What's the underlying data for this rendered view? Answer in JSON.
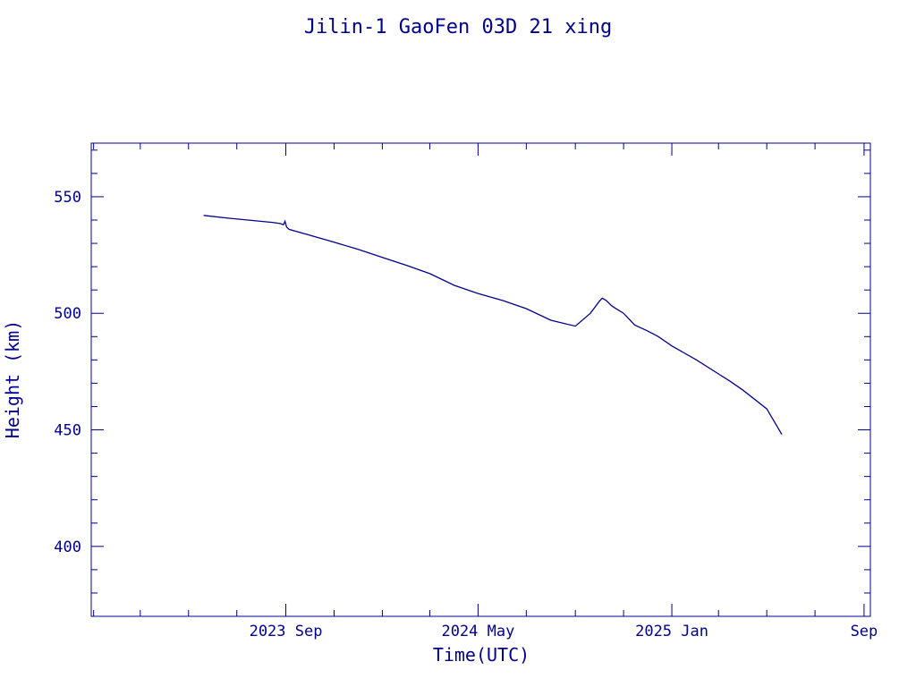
{
  "chart_data": {
    "type": "line",
    "title": "Jilin-1 GaoFen 03D 21 xing",
    "xlabel": "Time(UTC)",
    "ylabel": "Height (km)",
    "x_ticks": [
      {
        "date": "2023-09-01",
        "label": "2023 Sep"
      },
      {
        "date": "2024-05-01",
        "label": "2024 May"
      },
      {
        "date": "2025-01-01",
        "label": "2025 Jan"
      },
      {
        "date": "2025-09-01",
        "label": "Sep"
      }
    ],
    "y_ticks": [
      400,
      450,
      500,
      550
    ],
    "xlim": [
      "2022-12-29",
      "2025-09-09"
    ],
    "ylim": [
      370,
      573
    ],
    "grid": false,
    "color": "#00008b",
    "series": [
      {
        "x": [
          "2023-05-20",
          "2023-06-15",
          "2023-07-15",
          "2023-08-15",
          "2023-08-25",
          "2023-08-29",
          "2023-08-31",
          "2023-09-02",
          "2023-09-05",
          "2023-10-01",
          "2023-11-01",
          "2023-12-01",
          "2024-01-01",
          "2024-02-01",
          "2024-03-01",
          "2024-04-01",
          "2024-05-01",
          "2024-06-01",
          "2024-07-01",
          "2024-08-01",
          "2024-09-01",
          "2024-09-20",
          "2024-10-01",
          "2024-10-05",
          "2024-10-10",
          "2024-10-16",
          "2024-10-20",
          "2024-11-01",
          "2024-11-15",
          "2024-12-01",
          "2024-12-15",
          "2025-01-01",
          "2025-02-01",
          "2025-03-01",
          "2025-03-15",
          "2025-04-01",
          "2025-05-01",
          "2025-05-20"
        ],
        "y": [
          542,
          541,
          540,
          539,
          538.5,
          538,
          539.5,
          537,
          536,
          533.5,
          530.5,
          527.5,
          524,
          520.5,
          517,
          512,
          508.5,
          505.5,
          502,
          497,
          494.5,
          500,
          505,
          506.5,
          505.5,
          503.5,
          502.5,
          500,
          495,
          492.5,
          490,
          486,
          480,
          474,
          471,
          467,
          459,
          448
        ]
      }
    ]
  }
}
